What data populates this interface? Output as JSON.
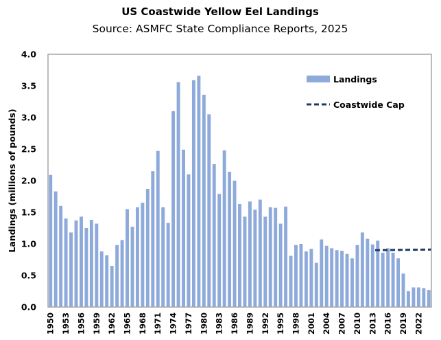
{
  "chart_data": {
    "type": "bar",
    "title": "US Coastwide Yellow Eel Landings",
    "subtitle": "Source: ASMFC State Compliance Reports, 2025",
    "xlabel": "",
    "ylabel": "Landings (millions of pounds)",
    "ylim": [
      0,
      4.0
    ],
    "yticks": [
      "0.0",
      "0.5",
      "1.0",
      "1.5",
      "2.0",
      "2.5",
      "3.0",
      "3.5",
      "4.0"
    ],
    "ytick_values": [
      0,
      0.5,
      1.0,
      1.5,
      2.0,
      2.5,
      3.0,
      3.5,
      4.0
    ],
    "grid": false,
    "legend_position": "top-right",
    "categories": [
      1950,
      1951,
      1952,
      1953,
      1954,
      1955,
      1956,
      1957,
      1958,
      1959,
      1960,
      1961,
      1962,
      1963,
      1964,
      1965,
      1966,
      1967,
      1968,
      1969,
      1970,
      1971,
      1972,
      1973,
      1974,
      1975,
      1976,
      1977,
      1978,
      1979,
      1980,
      1981,
      1982,
      1983,
      1984,
      1985,
      1986,
      1987,
      1988,
      1989,
      1990,
      1991,
      1992,
      1993,
      1994,
      1995,
      1996,
      1997,
      1998,
      1999,
      2000,
      2001,
      2002,
      2003,
      2004,
      2005,
      2006,
      2007,
      2008,
      2009,
      2010,
      2011,
      2012,
      2013,
      2014,
      2015,
      2016,
      2017,
      2018,
      2019,
      2020,
      2021,
      2022,
      2023,
      2024
    ],
    "xtick_labels": [
      "1950",
      "1953",
      "1956",
      "1959",
      "1962",
      "1965",
      "1968",
      "1971",
      "1974",
      "1977",
      "1980",
      "1983",
      "1986",
      "1989",
      "1992",
      "1995",
      "1998",
      "2001",
      "2004",
      "2007",
      "2010",
      "2013",
      "2016",
      "2019",
      "2022"
    ],
    "series": [
      {
        "name": "Landings",
        "type": "bar",
        "color": "#8eaadb",
        "values": [
          2.09,
          1.83,
          1.6,
          1.4,
          1.18,
          1.37,
          1.43,
          1.25,
          1.38,
          1.32,
          0.88,
          0.82,
          0.65,
          0.98,
          1.06,
          1.55,
          1.27,
          1.58,
          1.65,
          1.87,
          2.15,
          2.47,
          1.58,
          1.33,
          3.1,
          3.56,
          2.49,
          2.1,
          3.59,
          3.66,
          3.36,
          3.05,
          2.26,
          1.79,
          2.48,
          2.14,
          2.0,
          1.63,
          1.43,
          1.67,
          1.54,
          1.7,
          1.43,
          1.58,
          1.57,
          1.32,
          1.59,
          0.81,
          0.98,
          1.0,
          0.88,
          0.92,
          0.7,
          1.07,
          0.97,
          0.93,
          0.9,
          0.89,
          0.84,
          0.77,
          0.98,
          1.18,
          1.08,
          0.99,
          1.05,
          0.86,
          0.93,
          0.86,
          0.77,
          0.53,
          0.25,
          0.31,
          0.31,
          0.3,
          0.27
        ]
      },
      {
        "name": "Coastwide Cap",
        "type": "line",
        "style": "dashed",
        "color": "#1f3864",
        "x": [
          2014,
          2024
        ],
        "values": [
          0.9,
          0.91
        ]
      }
    ]
  }
}
